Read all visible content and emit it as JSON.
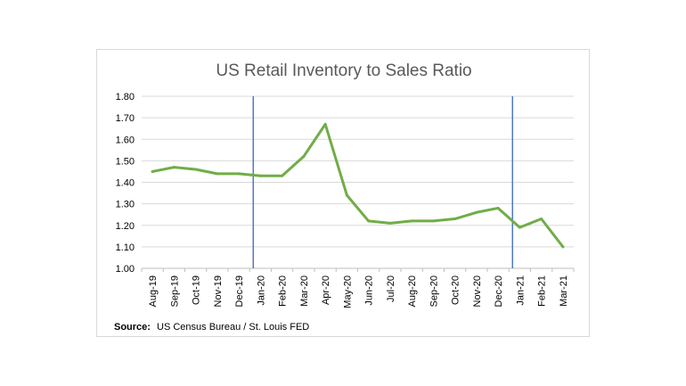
{
  "chart_data": {
    "type": "line",
    "title": "US Retail Inventory to Sales Ratio",
    "xlabel": "",
    "ylabel": "",
    "categories": [
      "Aug-19",
      "Sep-19",
      "Oct-19",
      "Nov-19",
      "Dec-19",
      "Jan-20",
      "Feb-20",
      "Mar-20",
      "Apr-20",
      "May-20",
      "Jun-20",
      "Jul-20",
      "Aug-20",
      "Sep-20",
      "Oct-20",
      "Nov-20",
      "Dec-20",
      "Jan-21",
      "Feb-21",
      "Mar-21"
    ],
    "series": [
      {
        "values": [
          1.45,
          1.47,
          1.46,
          1.44,
          1.44,
          1.43,
          1.43,
          1.52,
          1.67,
          1.34,
          1.22,
          1.21,
          1.22,
          1.22,
          1.23,
          1.26,
          1.28,
          1.19,
          1.23,
          1.1
        ]
      }
    ],
    "ylim": [
      1.0,
      1.8
    ],
    "yticks": [
      "1.80",
      "1.70",
      "1.60",
      "1.50",
      "1.40",
      "1.30",
      "1.20",
      "1.10",
      "1.00"
    ],
    "reference_lines_at": [
      "Jan-20",
      "Jan-21"
    ],
    "grid": true,
    "line_color": "#70ad47",
    "reference_line_color": "#4472c4",
    "source_label": "Source:",
    "source_text": "US Census Bureau / St. Louis FED"
  }
}
